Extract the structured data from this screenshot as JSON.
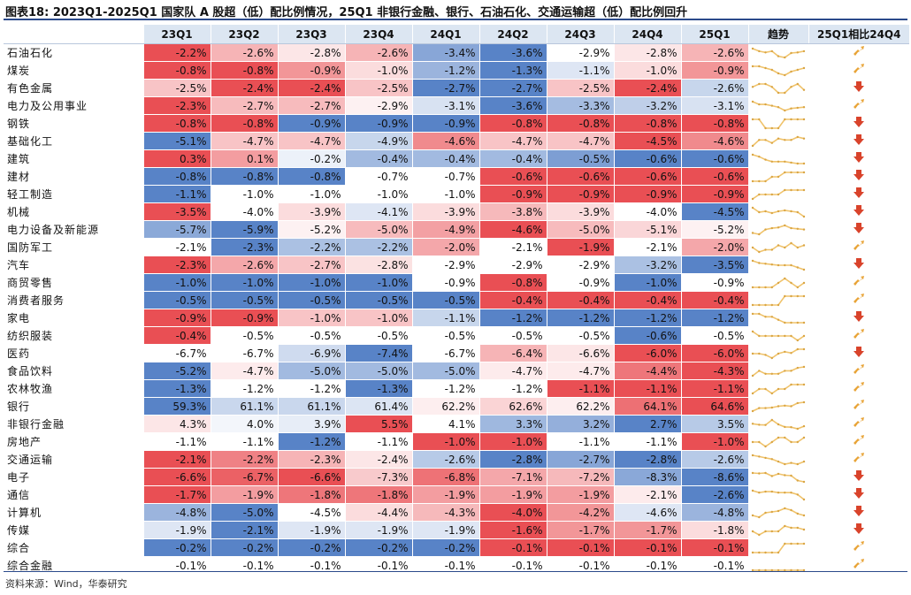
{
  "title": "图表18:  2023Q1-2025Q1 国家队 A 股超（低）配比例情况，25Q1 非银行金融、银行、石油石化、交通运输超（低）配比例回升",
  "source": "资料来源：Wind，华泰研究",
  "colors": {
    "positive_max": "#e8464b",
    "negative_max": "#4f7cc4",
    "header_bg": "#dce6f2",
    "arrow_up": "#e8a336",
    "arrow_down": "#d9432b",
    "spark_line": "#f0c36b"
  },
  "chart_data": {
    "type": "table",
    "headers": [
      "23Q1",
      "23Q2",
      "23Q3",
      "23Q4",
      "24Q1",
      "24Q2",
      "24Q3",
      "24Q4",
      "25Q1",
      "趋势",
      "25Q1相比24Q4"
    ],
    "rows": [
      {
        "name": "石油石化",
        "values": [
          -2.2,
          -2.6,
          -2.8,
          -2.6,
          -3.4,
          -3.6,
          -2.9,
          -2.8,
          -2.6
        ],
        "change": "up"
      },
      {
        "name": "煤炭",
        "values": [
          -0.8,
          -0.8,
          -0.9,
          -1.0,
          -1.2,
          -1.3,
          -1.1,
          -1.0,
          -0.9
        ],
        "change": "up"
      },
      {
        "name": "有色金属",
        "values": [
          -2.5,
          -2.4,
          -2.4,
          -2.5,
          -2.7,
          -2.7,
          -2.5,
          -2.4,
          -2.6
        ],
        "change": "down"
      },
      {
        "name": "电力及公用事业",
        "values": [
          -2.3,
          -2.7,
          -2.7,
          -2.9,
          -3.1,
          -3.6,
          -3.3,
          -3.2,
          -3.1
        ],
        "change": "up"
      },
      {
        "name": "钢铁",
        "values": [
          -0.8,
          -0.8,
          -0.9,
          -0.9,
          -0.9,
          -0.8,
          -0.8,
          -0.8,
          -0.8
        ],
        "change": "down"
      },
      {
        "name": "基础化工",
        "values": [
          -5.1,
          -4.7,
          -4.7,
          -4.9,
          -4.6,
          -4.7,
          -4.7,
          -4.5,
          -4.6
        ],
        "change": "down"
      },
      {
        "name": "建筑",
        "values": [
          0.3,
          0.1,
          -0.2,
          -0.4,
          -0.4,
          -0.4,
          -0.5,
          -0.6,
          -0.6
        ],
        "change": "down"
      },
      {
        "name": "建材",
        "values": [
          -0.8,
          -0.8,
          -0.8,
          -0.7,
          -0.7,
          -0.6,
          -0.6,
          -0.6,
          -0.6
        ],
        "change": "down"
      },
      {
        "name": "轻工制造",
        "values": [
          -1.1,
          -1.0,
          -1.0,
          -1.0,
          -1.0,
          -0.9,
          -0.9,
          -0.9,
          -0.9
        ],
        "change": "down"
      },
      {
        "name": "机械",
        "values": [
          -3.5,
          -4.0,
          -3.9,
          -4.1,
          -3.9,
          -3.8,
          -3.9,
          -4.0,
          -4.5
        ],
        "change": "down"
      },
      {
        "name": "电力设备及新能源",
        "values": [
          -5.7,
          -5.9,
          -5.2,
          -5.0,
          -4.9,
          -4.6,
          -5.0,
          -5.1,
          -5.2
        ],
        "change": "down"
      },
      {
        "name": "国防军工",
        "values": [
          -2.1,
          -2.3,
          -2.2,
          -2.2,
          -2.0,
          -2.1,
          -1.9,
          -2.1,
          -2.0
        ],
        "change": "up"
      },
      {
        "name": "汽车",
        "values": [
          -2.3,
          -2.6,
          -2.7,
          -2.8,
          -2.9,
          -2.9,
          -2.9,
          -3.2,
          -3.5
        ],
        "change": "down"
      },
      {
        "name": "商贸零售",
        "values": [
          -1.0,
          -1.0,
          -1.0,
          -1.0,
          -0.9,
          -0.8,
          -0.9,
          -1.0,
          -0.9
        ],
        "change": "up"
      },
      {
        "name": "消费者服务",
        "values": [
          -0.5,
          -0.5,
          -0.5,
          -0.5,
          -0.5,
          -0.4,
          -0.4,
          -0.4,
          -0.4
        ],
        "change": "up"
      },
      {
        "name": "家电",
        "values": [
          -0.9,
          -0.9,
          -1.0,
          -1.0,
          -1.1,
          -1.2,
          -1.2,
          -1.2,
          -1.2
        ],
        "change": "down"
      },
      {
        "name": "纺织服装",
        "values": [
          -0.4,
          -0.5,
          -0.5,
          -0.5,
          -0.5,
          -0.5,
          -0.5,
          -0.6,
          -0.5
        ],
        "change": "up"
      },
      {
        "name": "医药",
        "values": [
          -6.7,
          -6.7,
          -6.9,
          -7.4,
          -6.7,
          -6.4,
          -6.6,
          -6.0,
          -6.0
        ],
        "change": "down"
      },
      {
        "name": "食品饮料",
        "values": [
          -5.2,
          -4.7,
          -5.0,
          -5.0,
          -5.0,
          -4.7,
          -4.7,
          -4.4,
          -4.3
        ],
        "change": "up"
      },
      {
        "name": "农林牧渔",
        "values": [
          -1.3,
          -1.2,
          -1.2,
          -1.3,
          -1.2,
          -1.2,
          -1.1,
          -1.1,
          -1.1
        ],
        "change": "up"
      },
      {
        "name": "银行",
        "values": [
          59.3,
          61.1,
          61.1,
          61.4,
          62.2,
          62.6,
          62.2,
          64.1,
          64.6
        ],
        "change": "up"
      },
      {
        "name": "非银行金融",
        "values": [
          4.3,
          4.0,
          3.9,
          5.5,
          4.1,
          3.3,
          3.2,
          2.7,
          3.5
        ],
        "change": "up"
      },
      {
        "name": "房地产",
        "values": [
          -1.1,
          -1.1,
          -1.2,
          -1.1,
          -1.0,
          -1.0,
          -1.1,
          -1.1,
          -1.0
        ],
        "change": "up"
      },
      {
        "name": "交通运输",
        "values": [
          -2.1,
          -2.2,
          -2.3,
          -2.4,
          -2.6,
          -2.8,
          -2.7,
          -2.8,
          -2.6
        ],
        "change": "up"
      },
      {
        "name": "电子",
        "values": [
          -6.6,
          -6.7,
          -6.6,
          -7.3,
          -6.8,
          -7.1,
          -7.2,
          -8.3,
          -8.6
        ],
        "change": "down"
      },
      {
        "name": "通信",
        "values": [
          -1.7,
          -1.9,
          -1.8,
          -1.8,
          -1.9,
          -1.9,
          -1.9,
          -2.1,
          -2.6
        ],
        "change": "down"
      },
      {
        "name": "计算机",
        "values": [
          -4.8,
          -5.0,
          -4.5,
          -4.4,
          -4.3,
          -4.0,
          -4.2,
          -4.6,
          -4.8
        ],
        "change": "down"
      },
      {
        "name": "传媒",
        "values": [
          -1.9,
          -2.1,
          -1.9,
          -1.9,
          -1.9,
          -1.6,
          -1.7,
          -1.7,
          -1.8
        ],
        "change": "down"
      },
      {
        "name": "综合",
        "values": [
          -0.2,
          -0.2,
          -0.2,
          -0.2,
          -0.2,
          -0.1,
          -0.1,
          -0.1,
          -0.1
        ],
        "change": "up"
      },
      {
        "name": "综合金融",
        "values": [
          -0.1,
          -0.1,
          -0.1,
          -0.1,
          -0.1,
          -0.1,
          -0.1,
          -0.1,
          -0.1
        ],
        "change": "up"
      }
    ]
  }
}
